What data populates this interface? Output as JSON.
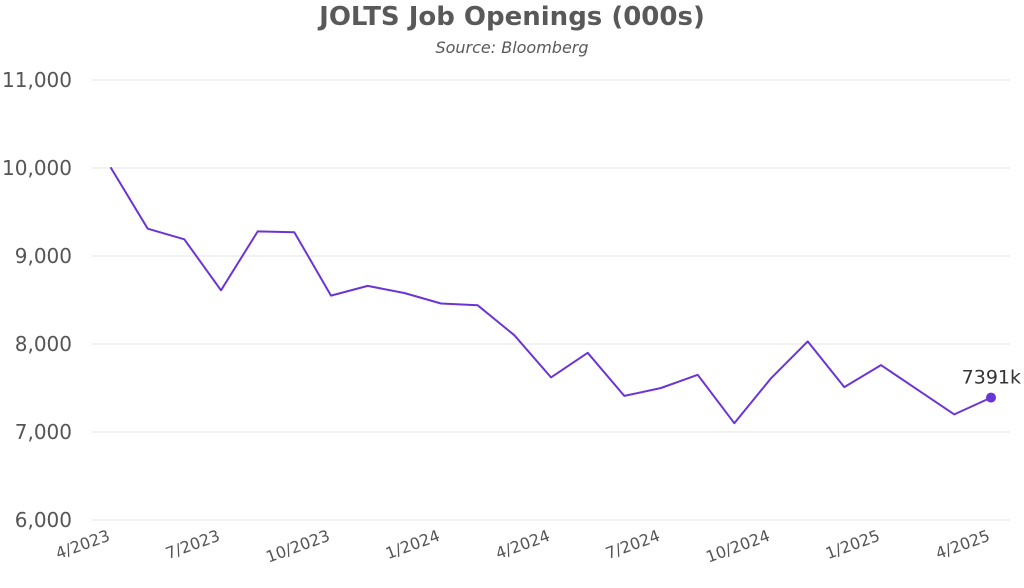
{
  "chart_data": {
    "type": "line",
    "title": "JOLTS Job Openings (000s)",
    "subtitle": "Source: Bloomberg",
    "xlabel": "",
    "ylabel": "",
    "ylim": [
      6000,
      11000
    ],
    "yticks": [
      "6,000",
      "7,000",
      "8,000",
      "9,000",
      "10,000",
      "11,000"
    ],
    "x_tick_labels": [
      "4/2023",
      "7/2023",
      "10/2023",
      "1/2024",
      "4/2024",
      "7/2024",
      "10/2024",
      "1/2025",
      "4/2025"
    ],
    "x": [
      "4/2023",
      "5/2023",
      "6/2023",
      "7/2023",
      "8/2023",
      "9/2023",
      "10/2023",
      "11/2023",
      "12/2023",
      "1/2024",
      "2/2024",
      "3/2024",
      "4/2024",
      "5/2024",
      "6/2024",
      "7/2024",
      "8/2024",
      "9/2024",
      "10/2024",
      "11/2024",
      "12/2024",
      "1/2025",
      "2/2025",
      "3/2025",
      "4/2025"
    ],
    "series": [
      {
        "values": [
          10000,
          9310,
          9190,
          8610,
          9280,
          9270,
          8550,
          8660,
          8580,
          8460,
          8440,
          8100,
          7620,
          7900,
          7410,
          7500,
          7650,
          7100,
          7610,
          8030,
          7510,
          7760,
          7480,
          7200,
          7391
        ]
      }
    ],
    "grid": true,
    "line_color": "#6b35d6",
    "end_label": "7391k"
  }
}
